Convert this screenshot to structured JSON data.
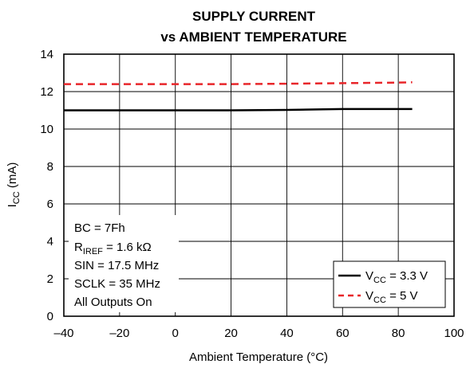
{
  "chart_data": {
    "type": "line",
    "title_line1": "SUPPLY CURRENT",
    "title_line2": "vs AMBIENT TEMPERATURE",
    "xlabel": "Ambient Temperature (°C)",
    "ylabel": {
      "main": "I",
      "sub": "CC",
      "rest": " (mA)"
    },
    "xlim": [
      -40,
      100
    ],
    "ylim": [
      0,
      14
    ],
    "xticks": [
      -40,
      -20,
      0,
      20,
      40,
      60,
      80,
      100
    ],
    "xtick_labels": [
      "–40",
      "–20",
      "0",
      "20",
      "40",
      "60",
      "80",
      "100"
    ],
    "yticks": [
      0,
      2,
      4,
      6,
      8,
      10,
      12,
      14
    ],
    "ytick_labels": [
      "0",
      "2",
      "4",
      "6",
      "8",
      "10",
      "12",
      "14"
    ],
    "grid": true,
    "series": [
      {
        "name": {
          "main": "V",
          "sub": "CC",
          "rest": " = 3.3 V"
        },
        "color": "#000000",
        "dash": "solid",
        "x": [
          -40,
          -20,
          0,
          20,
          40,
          60,
          80,
          85
        ],
        "y": [
          11.0,
          11.0,
          11.0,
          11.0,
          11.02,
          11.07,
          11.07,
          11.07
        ]
      },
      {
        "name": {
          "main": "V",
          "sub": "CC",
          "rest": " = 5 V"
        },
        "color": "#e8262a",
        "dash": "dashed",
        "x": [
          -40,
          -20,
          0,
          20,
          40,
          60,
          80,
          85
        ],
        "y": [
          12.4,
          12.4,
          12.4,
          12.4,
          12.42,
          12.45,
          12.48,
          12.5
        ]
      }
    ],
    "legend_position": "bottom-right",
    "annotations": [
      {
        "text": "BC = 7Fh"
      },
      {
        "main": "R",
        "sub": "IREF",
        "rest": " = 1.6 kΩ"
      },
      {
        "text": "SIN = 17.5 MHz"
      },
      {
        "text": "SCLK = 35 MHz"
      },
      {
        "text": "All Outputs On"
      }
    ]
  }
}
